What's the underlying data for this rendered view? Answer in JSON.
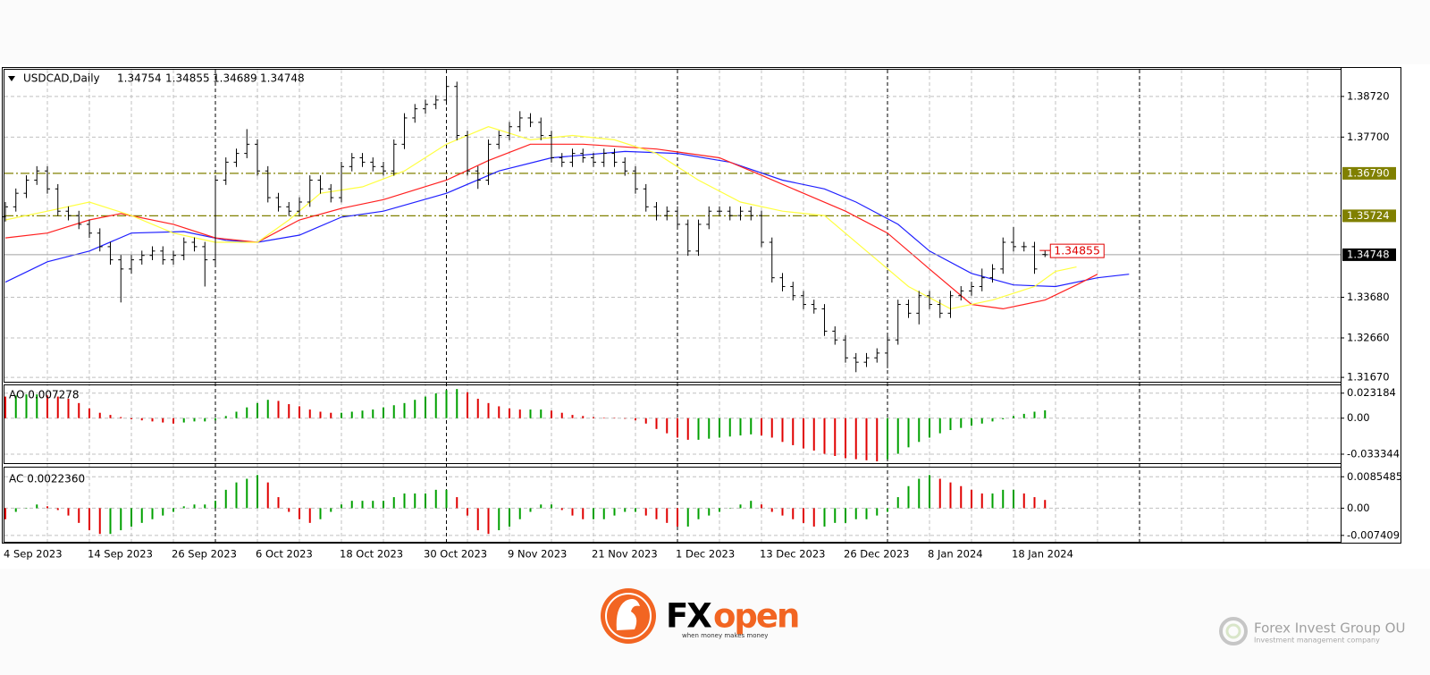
{
  "chart_data": {
    "type": "ohlc",
    "symbol": "USDCAD,Daily",
    "categories": [
      "4 Sep 2023",
      null,
      null,
      null,
      null,
      null,
      null,
      null,
      "14 Sep 2023",
      null,
      null,
      null,
      null,
      null,
      null,
      null,
      "26 Sep 2023",
      null,
      null,
      null,
      null,
      null,
      null,
      null,
      "6 Oct 2023",
      null,
      null,
      null,
      null,
      null,
      null,
      null,
      "18 Oct 2023",
      null,
      null,
      null,
      null,
      null,
      null,
      null,
      "30 Oct 2023",
      null,
      null,
      null,
      null,
      null,
      null,
      null,
      "9 Nov 2023",
      null,
      null,
      null,
      null,
      null,
      null,
      null,
      "21 Nov 2023",
      null,
      null,
      null,
      null,
      null,
      null,
      null,
      "1 Dec 2023",
      null,
      null,
      null,
      null,
      null,
      null,
      null,
      "13 Dec 2023",
      null,
      null,
      null,
      null,
      null,
      null,
      null,
      "26 Dec 2023",
      null,
      null,
      null,
      null,
      null,
      null,
      null,
      "8 Jan 2024",
      null,
      null,
      null,
      null,
      null,
      null,
      null,
      "18 Jan 2024",
      null,
      null,
      null
    ],
    "open": [
      1.357,
      1.3595,
      1.3629,
      1.3662,
      1.3685,
      1.364,
      1.3584,
      1.3573,
      1.3551,
      1.3529,
      1.3495,
      1.3462,
      1.3439,
      1.3462,
      1.3473,
      1.3484,
      1.3462,
      1.3473,
      1.3506,
      1.3495,
      1.3462,
      1.3662,
      1.3707,
      1.3729,
      1.3752,
      1.3685,
      1.3618,
      1.3595,
      1.3584,
      1.3607,
      1.3662,
      1.364,
      1.3618,
      1.3696,
      1.3718,
      1.3707,
      1.3696,
      1.3685,
      1.3752,
      1.3818,
      1.3841,
      1.3852,
      1.3863,
      1.3897,
      1.3774,
      1.3685,
      1.3662,
      1.3752,
      1.3774,
      1.3796,
      1.3818,
      1.3807,
      1.3774,
      1.3718,
      1.3707,
      1.3729,
      1.3718,
      1.3707,
      1.3729,
      1.3707,
      1.3685,
      1.364,
      1.3595,
      1.3573,
      1.3584,
      1.3551,
      1.3484,
      1.3551,
      1.3584,
      1.3584,
      1.3573,
      1.3584,
      1.3573,
      1.3506,
      1.3417,
      1.3395,
      1.3372,
      1.335,
      1.3339,
      1.3283,
      1.3261,
      1.3216,
      1.3205,
      1.3216,
      1.3228,
      1.3261,
      1.335,
      1.3328,
      1.3372,
      1.335,
      1.3328,
      1.3372,
      1.3384,
      1.3395,
      1.3417,
      1.3439,
      1.3506,
      1.3495,
      1.3495,
      1.34754
    ],
    "high": [
      1.3607,
      1.3641,
      1.3674,
      1.3697,
      1.3697,
      1.3652,
      1.3596,
      1.3585,
      1.3563,
      1.3541,
      1.3507,
      1.3474,
      1.3474,
      1.3485,
      1.3496,
      1.3496,
      1.3485,
      1.3518,
      1.3518,
      1.3507,
      1.3674,
      1.3719,
      1.3741,
      1.379,
      1.3764,
      1.3697,
      1.363,
      1.3607,
      1.3619,
      1.3674,
      1.3674,
      1.3652,
      1.3708,
      1.373,
      1.373,
      1.3719,
      1.3708,
      1.3764,
      1.383,
      1.3853,
      1.3864,
      1.3875,
      1.392,
      1.3909,
      1.3786,
      1.3697,
      1.3764,
      1.3786,
      1.3808,
      1.3835,
      1.383,
      1.3819,
      1.3786,
      1.373,
      1.3741,
      1.3741,
      1.373,
      1.3741,
      1.3741,
      1.3719,
      1.3697,
      1.3652,
      1.3607,
      1.3596,
      1.3596,
      1.3563,
      1.3563,
      1.3596,
      1.3596,
      1.3596,
      1.3596,
      1.3596,
      1.3585,
      1.3518,
      1.3429,
      1.3407,
      1.3384,
      1.3362,
      1.3351,
      1.3295,
      1.3273,
      1.3228,
      1.3228,
      1.324,
      1.3273,
      1.3362,
      1.3362,
      1.3384,
      1.3384,
      1.3362,
      1.3384,
      1.3396,
      1.3407,
      1.344,
      1.3451,
      1.3518,
      1.35442,
      1.3507,
      1.3507,
      1.34855
    ],
    "low": [
      1.3558,
      1.3583,
      1.3617,
      1.365,
      1.3628,
      1.3572,
      1.3561,
      1.3539,
      1.3517,
      1.3483,
      1.345,
      1.3355,
      1.3427,
      1.345,
      1.3461,
      1.345,
      1.345,
      1.3461,
      1.3483,
      1.3395,
      1.345,
      1.365,
      1.3695,
      1.3717,
      1.3673,
      1.3606,
      1.3583,
      1.3572,
      1.3572,
      1.3595,
      1.3628,
      1.3606,
      1.3606,
      1.3684,
      1.3695,
      1.3684,
      1.3673,
      1.3673,
      1.374,
      1.3806,
      1.3829,
      1.384,
      1.3851,
      1.3762,
      1.3673,
      1.364,
      1.365,
      1.374,
      1.3762,
      1.3784,
      1.3795,
      1.3762,
      1.3706,
      1.3695,
      1.3695,
      1.3706,
      1.3695,
      1.3695,
      1.3695,
      1.3673,
      1.3628,
      1.3583,
      1.3561,
      1.3561,
      1.3539,
      1.3472,
      1.3472,
      1.3539,
      1.3572,
      1.3561,
      1.3561,
      1.3561,
      1.3494,
      1.3405,
      1.3383,
      1.336,
      1.3338,
      1.3327,
      1.3271,
      1.3249,
      1.3204,
      1.318,
      1.3193,
      1.3204,
      1.319,
      1.3249,
      1.3316,
      1.33,
      1.3338,
      1.3316,
      1.3316,
      1.336,
      1.3372,
      1.3383,
      1.3405,
      1.3427,
      1.3483,
      1.3483,
      1.3427,
      1.34689
    ],
    "close": [
      1.3595,
      1.3629,
      1.3662,
      1.3685,
      1.364,
      1.3584,
      1.3573,
      1.3551,
      1.3529,
      1.3495,
      1.3462,
      1.3439,
      1.3462,
      1.3473,
      1.3484,
      1.3462,
      1.3473,
      1.3506,
      1.3495,
      1.3462,
      1.3662,
      1.3707,
      1.3729,
      1.3752,
      1.3685,
      1.3618,
      1.3595,
      1.3584,
      1.3607,
      1.3662,
      1.364,
      1.3618,
      1.3696,
      1.3718,
      1.3707,
      1.3696,
      1.3685,
      1.3752,
      1.3818,
      1.3841,
      1.3852,
      1.3863,
      1.3897,
      1.3774,
      1.3685,
      1.3662,
      1.3752,
      1.3774,
      1.3796,
      1.3818,
      1.3807,
      1.3774,
      1.3718,
      1.3707,
      1.3729,
      1.3718,
      1.3707,
      1.3729,
      1.3707,
      1.3685,
      1.364,
      1.3595,
      1.3573,
      1.3584,
      1.3551,
      1.3484,
      1.3551,
      1.3584,
      1.3584,
      1.3573,
      1.3584,
      1.3573,
      1.3506,
      1.3417,
      1.3395,
      1.3372,
      1.335,
      1.3339,
      1.3283,
      1.3261,
      1.3216,
      1.3205,
      1.3216,
      1.3228,
      1.3261,
      1.335,
      1.3328,
      1.3372,
      1.335,
      1.3328,
      1.3372,
      1.3384,
      1.3395,
      1.3417,
      1.3439,
      1.3506,
      1.3495,
      1.3495,
      1.3439,
      1.34748
    ],
    "bar_color": "#000000",
    "lines": [
      {
        "color": "#2020ff",
        "x": [
          0,
          4,
          8,
          12,
          17,
          21,
          24,
          28,
          32,
          36,
          42,
          47,
          52,
          59,
          64,
          69,
          74,
          78,
          81,
          85,
          88,
          92,
          96,
          100,
          104,
          107
        ],
        "values": [
          1.3406,
          1.3457,
          1.3484,
          1.3529,
          1.3533,
          1.3511,
          1.3506,
          1.3524,
          1.3569,
          1.3584,
          1.3629,
          1.3685,
          1.3718,
          1.3734,
          1.3729,
          1.3707,
          1.3662,
          1.364,
          1.3607,
          1.3551,
          1.3484,
          1.3428,
          1.3399,
          1.3395,
          1.3417,
          1.3426
        ]
      },
      {
        "color": "#ff2020",
        "x": [
          0,
          4,
          8,
          11,
          16,
          20,
          24,
          28,
          32,
          36,
          42,
          46,
          50,
          55,
          62,
          68,
          72,
          76,
          80,
          84,
          88,
          92,
          95,
          99,
          102,
          104
        ],
        "values": [
          1.3517,
          1.3529,
          1.3562,
          1.3578,
          1.3551,
          1.3517,
          1.3506,
          1.3562,
          1.3591,
          1.3613,
          1.3662,
          1.3711,
          1.3752,
          1.3752,
          1.374,
          1.3718,
          1.3674,
          1.3629,
          1.3584,
          1.3529,
          1.3439,
          1.335,
          1.3339,
          1.3361,
          1.3399,
          1.3426
        ]
      },
      {
        "color": "#ffff40",
        "x": [
          0,
          4,
          8,
          12,
          16,
          20,
          24,
          27,
          30,
          34,
          38,
          42,
          46,
          50,
          54,
          58,
          62,
          66,
          70,
          74,
          78,
          82,
          86,
          90,
          94,
          98,
          100,
          102
        ],
        "values": [
          1.3562,
          1.3584,
          1.3607,
          1.3573,
          1.3529,
          1.3506,
          1.3506,
          1.3562,
          1.3629,
          1.3645,
          1.3685,
          1.3752,
          1.3796,
          1.3763,
          1.3774,
          1.3763,
          1.3729,
          1.3662,
          1.3607,
          1.3584,
          1.3573,
          1.3484,
          1.3395,
          1.3339,
          1.3361,
          1.3395,
          1.3433,
          1.3444
        ]
      }
    ],
    "levels": [
      {
        "value": 1.3679,
        "label": "1.36790"
      },
      {
        "value": 1.35724,
        "label": "1.35724"
      }
    ],
    "level_color": "#808000",
    "ylim": [
      1.3156,
      1.3939
    ],
    "yticks": [
      {
        "value": 1.3872,
        "label": "1.38720"
      },
      {
        "value": 1.377,
        "label": "1.37700"
      },
      {
        "value": 1.3368,
        "label": "1.33680"
      },
      {
        "value": 1.3266,
        "label": "1.32660"
      },
      {
        "value": 1.3167,
        "label": "1.31670"
      }
    ],
    "grid": true,
    "panels": [
      {
        "label": "AO 0.007278",
        "ylim": [
          -0.0408,
          0.0296
        ],
        "yticks": [
          0.023184,
          {
            "value": 0,
            "label": "0.00"
          },
          -0.033344
        ],
        "values": [
          0.02,
          0.021,
          0.022,
          0.022,
          0.021,
          0.02,
          0.018,
          0.014,
          0.009,
          0.005,
          0.003,
          0.001,
          -0.001,
          -0.002,
          -0.003,
          -0.004,
          -0.005,
          -0.004,
          -0.003,
          -0.003,
          -0.002,
          0.002,
          0.006,
          0.01,
          0.014,
          0.017,
          0.016,
          0.013,
          0.011,
          0.008,
          0.006,
          0.005,
          0.005,
          0.006,
          0.007,
          0.008,
          0.01,
          0.012,
          0.014,
          0.017,
          0.02,
          0.023,
          0.026,
          0.027,
          0.024,
          0.018,
          0.014,
          0.011,
          0.009,
          0.008,
          0.008,
          0.008,
          0.007,
          0.005,
          0.003,
          0.002,
          0.001,
          0.0005,
          0.0002,
          -0.0005,
          -0.002,
          -0.005,
          -0.01,
          -0.014,
          -0.018,
          -0.02,
          -0.02,
          -0.019,
          -0.018,
          -0.017,
          -0.016,
          -0.015,
          -0.016,
          -0.018,
          -0.022,
          -0.025,
          -0.028,
          -0.03,
          -0.033,
          -0.035,
          -0.037,
          -0.038,
          -0.039,
          -0.04,
          -0.038,
          -0.033,
          -0.027,
          -0.022,
          -0.018,
          -0.014,
          -0.011,
          -0.009,
          -0.007,
          -0.005,
          -0.003,
          -0.001,
          0.002,
          0.004,
          0.006,
          0.007278
        ]
      },
      {
        "label": "AC 0.0022360",
        "ylim": [
          -0.0089,
          0.0108
        ],
        "yticks": [
          0.0085485,
          {
            "value": 0,
            "label": "0.00"
          },
          -0.007409
        ],
        "values": [
          -0.003,
          -0.001,
          0.0,
          0.001,
          0.0005,
          -0.0005,
          -0.002,
          -0.004,
          -0.006,
          -0.007,
          -0.007,
          -0.006,
          -0.005,
          -0.004,
          -0.003,
          -0.002,
          -0.001,
          0.0005,
          0.001,
          0.001,
          0.002,
          0.005,
          0.007,
          0.008,
          0.009,
          0.007,
          0.003,
          -0.001,
          -0.003,
          -0.004,
          -0.003,
          -0.001,
          0.001,
          0.002,
          0.002,
          0.002,
          0.002,
          0.003,
          0.004,
          0.004,
          0.004,
          0.005,
          0.005,
          0.003,
          -0.002,
          -0.006,
          -0.007,
          -0.006,
          -0.005,
          -0.003,
          -0.001,
          0.001,
          0.001,
          -0.0005,
          -0.002,
          -0.003,
          -0.003,
          -0.003,
          -0.002,
          -0.001,
          -0.001,
          -0.002,
          -0.003,
          -0.004,
          -0.005,
          -0.005,
          -0.003,
          -0.002,
          -0.001,
          0.0,
          0.001,
          0.002,
          0.001,
          -0.001,
          -0.002,
          -0.003,
          -0.004,
          -0.005,
          -0.005,
          -0.004,
          -0.004,
          -0.003,
          -0.003,
          -0.002,
          -0.001,
          0.003,
          0.006,
          0.008,
          0.009,
          0.008,
          0.007,
          0.006,
          0.005,
          0.004,
          0.004,
          0.005,
          0.005,
          0.004,
          0.003,
          0.002236
        ]
      }
    ],
    "up_color": "#00a000",
    "down_color": "#e00000"
  },
  "branding": {
    "logo_fx": "FX",
    "logo_open": "open",
    "tagline": "when money makes money",
    "company": "Forex Invest Group OU",
    "company_sub": "Investment management company"
  }
}
